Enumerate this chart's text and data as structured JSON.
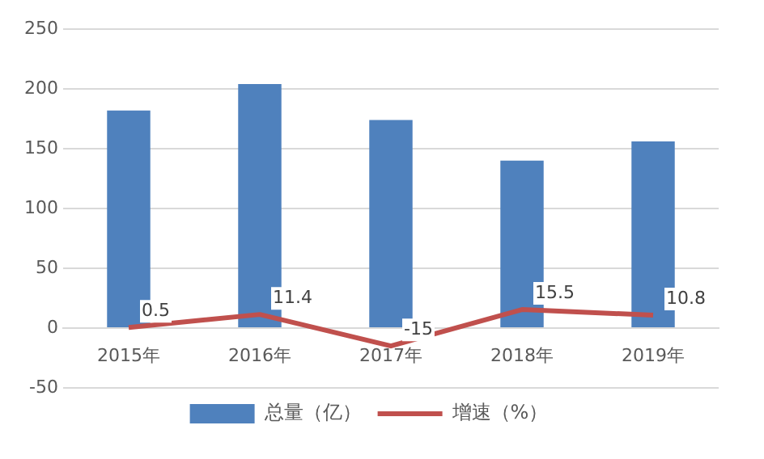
{
  "chart_data": {
    "type": "bar",
    "categories": [
      "2015年",
      "2016年",
      "2017年",
      "2018年",
      "2019年"
    ],
    "series": [
      {
        "name": "总量（亿）",
        "color": "#4f81bd",
        "values": [
          182,
          204,
          174,
          140,
          156
        ]
      },
      {
        "name": "增速（%）",
        "type": "line",
        "color": "#c0504d",
        "values": [
          0.5,
          11.4,
          -15,
          15.5,
          10.8
        ],
        "value_labels": [
          "0.5",
          "11.4",
          "-15",
          "15.5",
          "10.8"
        ]
      }
    ],
    "ylim": [
      -50,
      250
    ],
    "yticks": [
      -50,
      0,
      50,
      100,
      150,
      200,
      250
    ],
    "grid": "y",
    "legend": "bottom",
    "marker": "none"
  }
}
